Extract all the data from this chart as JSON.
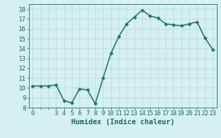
{
  "x": [
    0,
    1,
    2,
    3,
    4,
    5,
    6,
    7,
    8,
    9,
    10,
    11,
    12,
    13,
    14,
    15,
    16,
    17,
    18,
    19,
    20,
    21,
    22,
    23
  ],
  "y": [
    10.2,
    10.2,
    10.2,
    10.3,
    8.7,
    8.5,
    9.9,
    9.8,
    8.4,
    11.0,
    13.5,
    15.2,
    16.5,
    17.2,
    17.9,
    17.3,
    17.1,
    16.5,
    16.4,
    16.3,
    16.5,
    16.7,
    15.1,
    13.9
  ],
  "line_color": "#1a7a6e",
  "marker": "D",
  "marker_size": 2.5,
  "marker_color": "#1a7a6e",
  "bg_color": "#d6f0f0",
  "grid_color": "#b8dede",
  "xlabel": "Humidex (Indice chaleur)",
  "xlim": [
    -0.5,
    23.5
  ],
  "ylim": [
    8,
    18.5
  ],
  "yticks": [
    8,
    9,
    10,
    11,
    12,
    13,
    14,
    15,
    16,
    17,
    18
  ],
  "xtick_labels": [
    "0",
    "",
    "",
    "3",
    "4",
    "5",
    "6",
    "7",
    "8",
    "9",
    "10",
    "11",
    "12",
    "13",
    "14",
    "15",
    "16",
    "17",
    "18",
    "19",
    "20",
    "21",
    "22",
    "23"
  ],
  "xticks": [
    0,
    1,
    2,
    3,
    4,
    5,
    6,
    7,
    8,
    9,
    10,
    11,
    12,
    13,
    14,
    15,
    16,
    17,
    18,
    19,
    20,
    21,
    22,
    23
  ],
  "tick_color": "#1a6a60",
  "label_color": "#1a6a60",
  "xlabel_fontsize": 7.5,
  "tick_fontsize": 6.5,
  "linewidth": 1.2
}
